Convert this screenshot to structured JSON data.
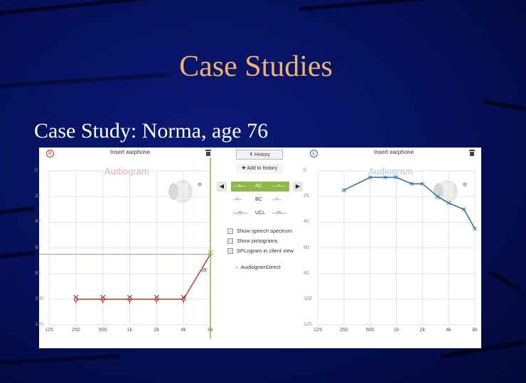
{
  "slide": {
    "title": "Case Studies",
    "subtitle": "Case Study:  Norma, age 76"
  },
  "right_ear_panel": {
    "ear_marker": "R",
    "header": "Insert earphone",
    "watermark": "Audiogram",
    "threshold_label": "65",
    "y_ticks": [
      "0",
      "20",
      "40",
      "60",
      "80",
      "100",
      "120"
    ],
    "x_ticks": [
      "125",
      "250",
      "500",
      "1k",
      "2k",
      "4k",
      "8k"
    ],
    "thresholds": [
      {
        "freq": "250",
        "db": 100
      },
      {
        "freq": "500",
        "db": 100
      },
      {
        "freq": "1k",
        "db": 100
      },
      {
        "freq": "2k",
        "db": 100
      },
      {
        "freq": "4k",
        "db": 100
      },
      {
        "freq": "8k",
        "db": 65
      }
    ],
    "colors": {
      "line": "#c0392b",
      "marker": "#9b1c1c",
      "watermark": "#e8a9a9",
      "threshold_line": "#8ab84a"
    }
  },
  "controls": {
    "history_button": "History",
    "add_history_button": "Add to history",
    "rows": [
      {
        "left": "—o—",
        "mid": "AC",
        "right": "—×—",
        "active": true
      },
      {
        "left": "–<–",
        "mid": "BC",
        "right": "–>–",
        "active": false
      },
      {
        "left": "—m—",
        "mid": "UCL",
        "right": "—m—",
        "active": false
      }
    ],
    "checkboxes": [
      "Show speech spectrum",
      "Show pictograms",
      "SPLogram in client view"
    ],
    "audiogram_direct": "AudiogramDirect",
    "colors": {
      "active_row": "#8fb84a",
      "left_symbol": "#c0392b",
      "right_symbol": "#2e6da4"
    }
  },
  "left_ear_panel": {
    "ear_marker": "L",
    "header": "Insert earphone",
    "watermark": "Audiogram",
    "y_ticks": [
      "0",
      "20",
      "40",
      "60",
      "80",
      "100",
      "120"
    ],
    "x_ticks": [
      "125",
      "250",
      "500",
      "1k",
      "2k",
      "4k",
      "8k"
    ],
    "thresholds": [
      {
        "freq": "250",
        "db": 15
      },
      {
        "freq": "500",
        "db": 5
      },
      {
        "freq": "750",
        "db": 5
      },
      {
        "freq": "1k",
        "db": 5
      },
      {
        "freq": "1.5k",
        "db": 10
      },
      {
        "freq": "2k",
        "db": 10
      },
      {
        "freq": "3k",
        "db": 20
      },
      {
        "freq": "4k",
        "db": 25
      },
      {
        "freq": "6k",
        "db": 30
      },
      {
        "freq": "8k",
        "db": 45
      }
    ],
    "colors": {
      "line": "#2e6da4",
      "watermark": "#a8c8e8"
    }
  }
}
